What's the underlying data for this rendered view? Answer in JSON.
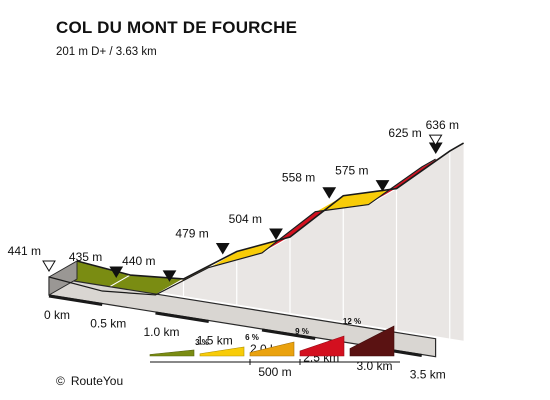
{
  "header": {
    "title": "COL DU MONT DE FOURCHE",
    "subtitle": "201 m D+ / 3.63 km"
  },
  "credit": {
    "symbol": "©",
    "text": "RouteYou"
  },
  "chart_data": {
    "type": "area",
    "title": "COL DU MONT DE FOURCHE",
    "subtitle": "201 m D+ / 3.63 km",
    "x_unit": "km",
    "y_unit": "m",
    "x": [
      0,
      0.5,
      1.0,
      1.5,
      2.0,
      2.5,
      3.0,
      3.5,
      3.63
    ],
    "elevation": [
      441,
      435,
      440,
      479,
      504,
      558,
      575,
      625,
      636
    ],
    "elevation_labels": [
      "441 m",
      "435 m",
      "440 m",
      "479 m",
      "504 m",
      "558 m",
      "575 m",
      "625 m",
      "636 m"
    ],
    "x_ticks": [
      "0 km",
      "0.5 km",
      "1.0 km",
      "1.5 km",
      "2.0 km",
      "2.5 km",
      "3.0 km",
      "3.5 km"
    ],
    "segments": [
      {
        "from_km": 0.0,
        "to_km": 0.5,
        "gradient_class": "3 %",
        "color": "#7a8c12"
      },
      {
        "from_km": 0.5,
        "to_km": 1.0,
        "gradient_class": "3 %",
        "color": "#7a8c12"
      },
      {
        "from_km": 1.0,
        "to_km": 1.5,
        "gradient_class": "6 %",
        "color": "#eaa20e"
      },
      {
        "from_km": 1.5,
        "to_km": 2.0,
        "gradient_class": "6 %",
        "color": "#f8cc08"
      },
      {
        "from_km": 2.0,
        "to_km": 2.5,
        "gradient_class": "12 %",
        "color": "#d3101f"
      },
      {
        "from_km": 2.5,
        "to_km": 3.0,
        "gradient_class": "6 %",
        "color": "#f8cc08"
      },
      {
        "from_km": 3.0,
        "to_km": 3.5,
        "gradient_class": "12 %",
        "color": "#d3101f"
      },
      {
        "from_km": 3.5,
        "to_km": 3.63,
        "gradient_class": "12 %",
        "color": "#d3101f"
      }
    ],
    "legend": {
      "items": [
        {
          "label": "",
          "color": "#7a8c12"
        },
        {
          "label": "3 %",
          "color": "#f8cc08"
        },
        {
          "label": "6 %",
          "color": "#eaa20e"
        },
        {
          "label": "9 %",
          "color": "#d3101f"
        },
        {
          "label": "12 %",
          "color": "#5a1212"
        }
      ],
      "scale_label": "500 m"
    }
  }
}
